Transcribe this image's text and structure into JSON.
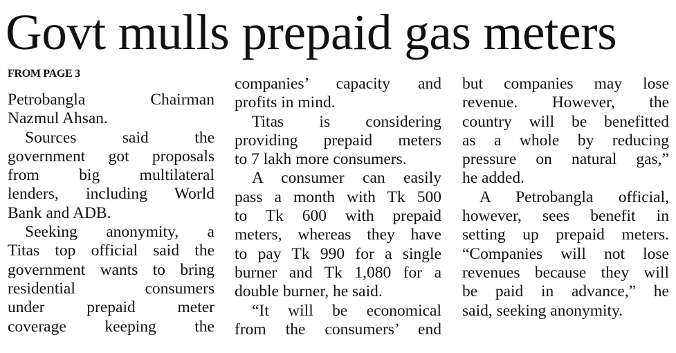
{
  "headline": "Govt mulls prepaid gas meters",
  "kicker": "FROM PAGE 3",
  "columns": [
    [
      [
        "Petrobangla Chairman",
        "Nazmul Ahsan."
      ],
      [
        "Sources said the",
        "government got proposals",
        "from big multilateral",
        "lenders, including World",
        "Bank and ADB."
      ],
      [
        "Seeking anonymity, a",
        "Titas top official said the",
        "government wants to bring",
        "residential consumers",
        "under prepaid meter",
        "coverage keeping the"
      ]
    ],
    [
      [
        "companies’ capacity and",
        "profits in mind."
      ],
      [
        "Titas is considering",
        "providing prepaid meters",
        "to 7 lakh more consumers."
      ],
      [
        "A consumer can easily",
        "pass a month with Tk 500",
        "to Tk 600 with prepaid",
        "meters, whereas they have",
        "to pay Tk 990 for a single",
        "burner and Tk 1,080 for a",
        "double burner, he said."
      ],
      [
        "“It will be economical",
        "from the consumers’ end"
      ]
    ],
    [
      [
        "but companies may lose",
        "revenue. However, the",
        "country will be benefitted",
        "as a whole by reducing",
        "pressure on natural gas,”",
        "he added."
      ],
      [
        "A Petrobangla official,",
        "however, sees benefit in",
        "setting up prepaid meters.",
        "“Companies will not lose",
        "revenues because they will",
        "be paid in advance,” he",
        "said, seeking anonymity."
      ]
    ]
  ]
}
